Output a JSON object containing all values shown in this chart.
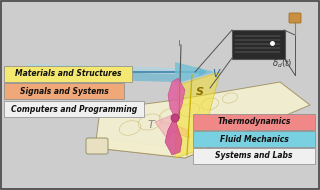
{
  "left_labels": [
    {
      "text": "Materials and Structures",
      "facecolor": "#F5E870"
    },
    {
      "text": "Signals and Systems",
      "facecolor": "#F0A878"
    },
    {
      "text": "Computers and Programming",
      "facecolor": "#F0F0F0"
    }
  ],
  "right_labels": [
    {
      "text": "Thermodynamics",
      "facecolor": "#F08888"
    },
    {
      "text": "Fluid Mechanics",
      "facecolor": "#78D0E0"
    },
    {
      "text": "Systems and Labs",
      "facecolor": "#F0F0F0"
    }
  ],
  "bg_color": "#CDCDCD",
  "wing_fill": "#F5EEB0",
  "wing_edge": "#B8A870"
}
